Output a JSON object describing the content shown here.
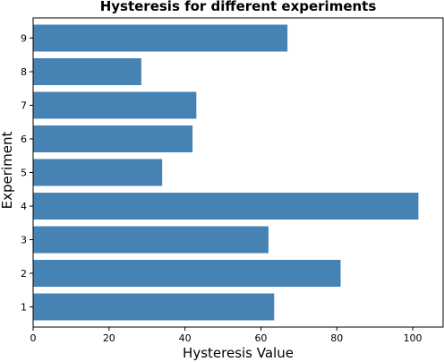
{
  "chart_data": {
    "type": "bar",
    "orientation": "horizontal",
    "title": "Hysteresis for different experiments",
    "xlabel": "Hysteresis Value",
    "ylabel": "Experiment",
    "categories": [
      "1",
      "2",
      "3",
      "4",
      "5",
      "6",
      "7",
      "8",
      "9"
    ],
    "values": [
      63.5,
      81,
      62,
      101.5,
      34,
      42,
      43,
      28.5,
      67
    ],
    "xlim": [
      0,
      108
    ],
    "xticks": [
      0,
      20,
      40,
      60,
      80,
      100
    ],
    "grid": false,
    "bar_color": "#4682b4"
  }
}
